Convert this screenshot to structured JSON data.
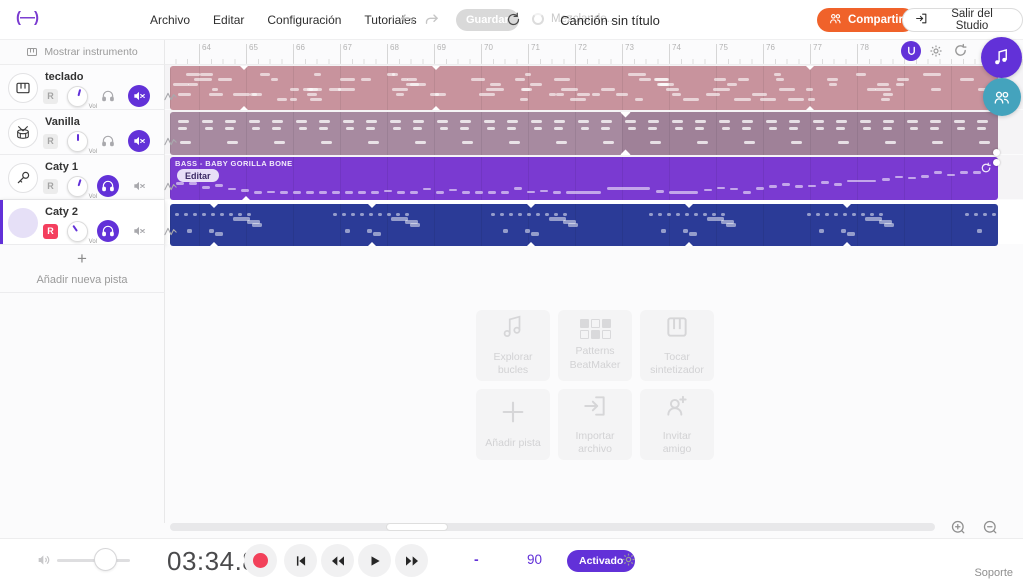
{
  "topbar": {
    "logo": "(—)",
    "menu": [
      {
        "label": "Archivo"
      },
      {
        "label": "Editar"
      },
      {
        "label": "Configuración"
      },
      {
        "label": "Tutoriales"
      }
    ],
    "save_label": "Guardar",
    "mixing_label": "Mezclando...",
    "song_title": "Canción sin título",
    "share_label": "Compartir",
    "exit_label": "Salir del Studio"
  },
  "ruler": {
    "numbers": [
      64,
      65,
      66,
      67,
      68,
      69,
      70,
      71,
      72,
      73,
      74,
      75,
      76,
      77,
      78
    ]
  },
  "track_panel": {
    "show_instrument_label": "Mostrar instrumento",
    "record_label": "R",
    "volume_label": "Vol",
    "add_track_label": "Añadir nueva pista",
    "tracks": [
      {
        "name": "teclado",
        "icon": "piano-icon",
        "armed": false,
        "monitoring": false,
        "muted": true,
        "selected": false,
        "knob_angle": 15
      },
      {
        "name": "Vanilla",
        "icon": "drum-icon",
        "armed": false,
        "monitoring": false,
        "muted": true,
        "selected": false,
        "knob_angle": 0
      },
      {
        "name": "Caty 1",
        "icon": "microphone-icon",
        "armed": false,
        "monitoring": true,
        "muted": false,
        "selected": false,
        "knob_angle": 18
      },
      {
        "name": "Caty 2",
        "icon": "avatar-icon",
        "armed": true,
        "monitoring": true,
        "muted": false,
        "selected": true,
        "knob_angle": -35
      }
    ]
  },
  "timeline": {
    "region_label": "BASS - BABY GORILLA BONE",
    "edit_button_label": "Editar"
  },
  "empty_state": {
    "cards": [
      {
        "label": "Explorar\nbucles",
        "icon": "loops-icon"
      },
      {
        "label": "Patterns\nBeatMaker",
        "icon": "beatmaker-icon"
      },
      {
        "label": "Tocar\nsintetizador",
        "icon": "synth-icon"
      },
      {
        "label": "Añadir pista",
        "icon": "add-icon"
      },
      {
        "label": "Importar\narchivo",
        "icon": "import-icon"
      },
      {
        "label": "Invitar\namigo",
        "icon": "invite-icon"
      }
    ]
  },
  "transport": {
    "time": "03:34.8",
    "signature_dash": "-",
    "tempo": "90",
    "metronome_label": "Activado"
  },
  "footer": {
    "support_label": "Soporte"
  },
  "colors": {
    "accent_purple": "#6231d8",
    "teal": "#44a3bd",
    "orange": "#f0622a",
    "record_red": "#f2415a",
    "armed_red": "#f43f5e",
    "region_pink": "#c8939d",
    "region_mauve": "#a78aa0",
    "region_purple": "#7a3ad1",
    "region_navy": "#2b3b97"
  }
}
